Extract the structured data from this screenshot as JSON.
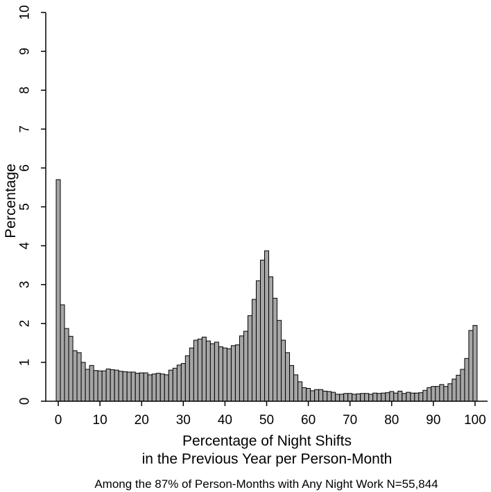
{
  "chart_data": {
    "type": "bar",
    "title": "",
    "ylabel": "Percentage",
    "xlabel_line1": "Percentage of Night Shifts",
    "xlabel_line2": "in the Previous Year per Person-Month",
    "note": "Among the 87% of Person-Months with Any Night Work N=55,844",
    "xlim": [
      -3,
      103
    ],
    "ylim": [
      0,
      10
    ],
    "x_ticks": [
      0,
      10,
      20,
      30,
      40,
      50,
      60,
      70,
      80,
      90,
      100
    ],
    "y_ticks": [
      0,
      1,
      2,
      3,
      4,
      5,
      6,
      7,
      8,
      9,
      10
    ],
    "bin_width": 1,
    "x": [
      0,
      1,
      2,
      3,
      4,
      5,
      6,
      7,
      8,
      9,
      10,
      11,
      12,
      13,
      14,
      15,
      16,
      17,
      18,
      19,
      20,
      21,
      22,
      23,
      24,
      25,
      26,
      27,
      28,
      29,
      30,
      31,
      32,
      33,
      34,
      35,
      36,
      37,
      38,
      39,
      40,
      41,
      42,
      43,
      44,
      45,
      46,
      47,
      48,
      49,
      50,
      51,
      52,
      53,
      54,
      55,
      56,
      57,
      58,
      59,
      60,
      61,
      62,
      63,
      64,
      65,
      66,
      67,
      68,
      69,
      70,
      71,
      72,
      73,
      74,
      75,
      76,
      77,
      78,
      79,
      80,
      81,
      82,
      83,
      84,
      85,
      86,
      87,
      88,
      89,
      90,
      91,
      92,
      93,
      94,
      95,
      96,
      97,
      98,
      99,
      100
    ],
    "values": [
      5.7,
      2.48,
      1.87,
      1.67,
      1.3,
      1.25,
      1.0,
      0.82,
      0.92,
      0.79,
      0.78,
      0.78,
      0.83,
      0.81,
      0.8,
      0.77,
      0.76,
      0.75,
      0.75,
      0.72,
      0.73,
      0.73,
      0.68,
      0.7,
      0.72,
      0.7,
      0.68,
      0.8,
      0.85,
      0.93,
      0.97,
      1.17,
      1.37,
      1.57,
      1.6,
      1.65,
      1.55,
      1.48,
      1.52,
      1.4,
      1.37,
      1.35,
      1.43,
      1.45,
      1.68,
      1.8,
      2.2,
      2.62,
      3.1,
      3.63,
      3.87,
      3.2,
      2.65,
      2.08,
      1.57,
      1.25,
      0.92,
      0.68,
      0.5,
      0.35,
      0.33,
      0.27,
      0.3,
      0.3,
      0.26,
      0.25,
      0.23,
      0.18,
      0.18,
      0.2,
      0.2,
      0.18,
      0.19,
      0.2,
      0.2,
      0.18,
      0.21,
      0.2,
      0.21,
      0.22,
      0.25,
      0.21,
      0.26,
      0.2,
      0.23,
      0.21,
      0.21,
      0.22,
      0.28,
      0.35,
      0.38,
      0.38,
      0.43,
      0.38,
      0.45,
      0.57,
      0.67,
      0.82,
      1.1,
      1.82,
      1.95
    ],
    "bar_fill": "#a6a6a6",
    "bar_stroke": "#000000",
    "grid": false
  }
}
